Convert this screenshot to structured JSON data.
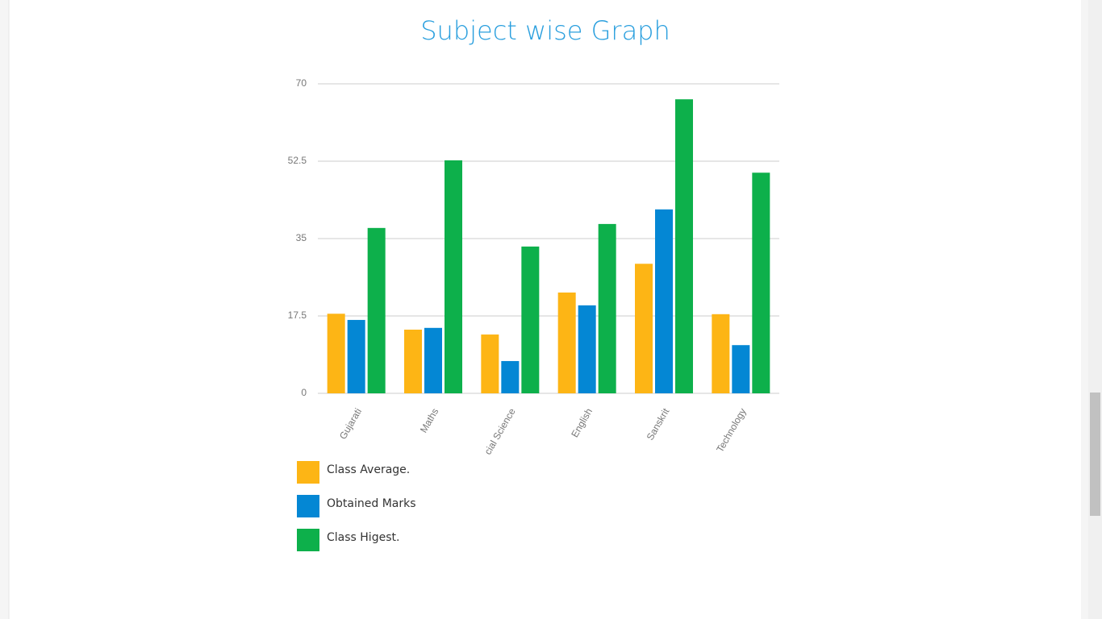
{
  "chart_data": {
    "type": "bar",
    "title": "Subject wise Graph",
    "categories": [
      "Gujarati",
      "Maths",
      "cial Science",
      "English",
      "Sanskrit",
      "Technology"
    ],
    "series": [
      {
        "name": "Class Average.",
        "color": "#fdb515",
        "values": [
          18,
          14.4,
          13.3,
          22.8,
          29.3,
          17.9
        ]
      },
      {
        "name": "Obtained Marks",
        "color": "#0487d4",
        "values": [
          16.6,
          14.8,
          7.3,
          19.9,
          41.6,
          10.9
        ]
      },
      {
        "name": "Class Higest.",
        "color": "#0db04b",
        "values": [
          37.4,
          52.7,
          33.2,
          38.3,
          66.5,
          49.9
        ]
      }
    ],
    "ylim": [
      0,
      70
    ],
    "yticks": [
      0,
      17.5,
      35,
      52.5,
      70
    ],
    "grid": true
  }
}
